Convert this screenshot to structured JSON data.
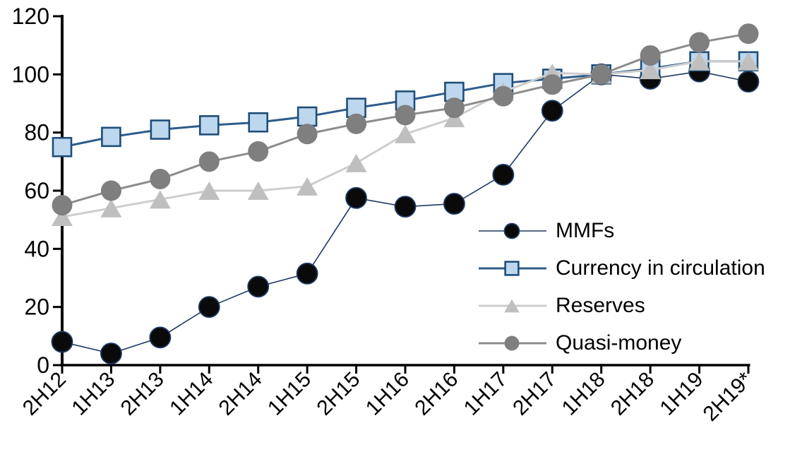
{
  "chart_data": {
    "type": "line",
    "title": "",
    "xlabel": "",
    "ylabel": "",
    "grid": false,
    "background": "#FFFFFF",
    "axis_color": "#000000",
    "legend_position": "inside-right",
    "categories": [
      "2H12",
      "1H13",
      "2H13",
      "1H14",
      "2H14",
      "1H15",
      "2H15",
      "1H16",
      "2H16",
      "1H17",
      "2H17",
      "1H18",
      "2H18",
      "1H19",
      "2H19*"
    ],
    "yaxis": {
      "min": 0,
      "max": 120,
      "step": 20,
      "ticks": [
        0,
        20,
        40,
        60,
        80,
        100,
        120
      ]
    },
    "series": [
      {
        "name": "MMFs",
        "marker": "circle",
        "values": [
          8,
          4,
          9.5,
          20,
          27,
          31.5,
          57.5,
          54.5,
          55.5,
          65.5,
          87.5,
          100,
          98.5,
          101,
          97.5
        ],
        "line_color": "#1F3864",
        "line_width": 1.6,
        "marker_fill": "#0A0A0A",
        "marker_stroke": "#1F3864"
      },
      {
        "name": "Currency in circulation",
        "marker": "square",
        "values": [
          75,
          78.5,
          81,
          82.5,
          83.5,
          85.5,
          88.5,
          91,
          94,
          97,
          98.5,
          100,
          102,
          104.5,
          104.5
        ],
        "line_color": "#2E5C8A",
        "line_width": 3,
        "marker_fill": "#BDD7EE",
        "marker_stroke": "#1F4E79"
      },
      {
        "name": "Reserves",
        "marker": "triangle",
        "values": [
          51,
          54,
          57,
          60,
          60,
          61.5,
          69.5,
          79.5,
          85,
          94,
          100.5,
          100,
          101.5,
          104.5,
          104.5
        ],
        "line_color": "#CDCDCD",
        "line_width": 3,
        "marker_fill": "#BFBFBF",
        "marker_stroke": "none"
      },
      {
        "name": "Quasi-money",
        "marker": "circle",
        "values": [
          55,
          60,
          64,
          70,
          73.5,
          79.5,
          83,
          86,
          88.5,
          92.5,
          96.5,
          100,
          106.5,
          111,
          114
        ],
        "line_color": "#8C8C8C",
        "line_width": 3,
        "marker_fill": "#7F7F7F",
        "marker_stroke": "none"
      }
    ]
  }
}
